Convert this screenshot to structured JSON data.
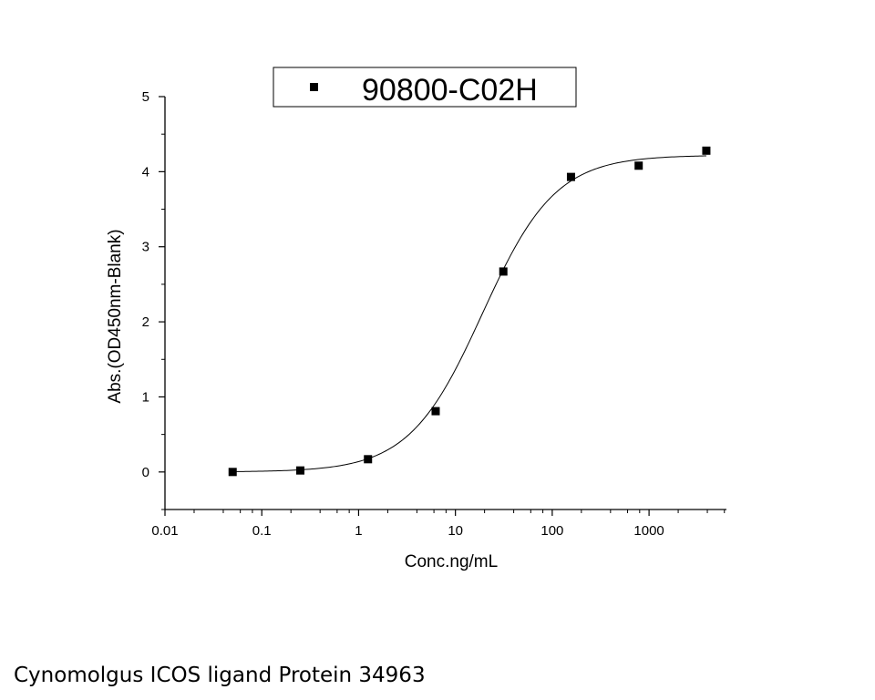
{
  "chart_data": {
    "type": "scatter",
    "title": "",
    "xlabel": "Conc.ng/mL",
    "ylabel": "Abs.(OD450nm-Blank)",
    "xscale": "log",
    "xlim": [
      0.01,
      6300
    ],
    "ylim": [
      -0.5,
      5
    ],
    "x_ticks": [
      0.01,
      0.1,
      1,
      10,
      100,
      1000
    ],
    "x_tick_labels": [
      "0.01",
      "0.1",
      "1",
      "10",
      "100",
      "1000"
    ],
    "y_ticks": [
      0,
      1,
      2,
      3,
      4,
      5
    ],
    "y_tick_labels": [
      "0",
      "1",
      "2",
      "3",
      "4",
      "5"
    ],
    "grid": false,
    "legend_position": "top-center",
    "series": [
      {
        "name": "90800-C02H",
        "marker": "square",
        "color": "#000000",
        "x": [
          0.05,
          0.25,
          1.25,
          6.25,
          31.25,
          156.25,
          781.25,
          3906.25
        ],
        "y": [
          0.0,
          0.02,
          0.17,
          0.81,
          2.67,
          3.93,
          4.08,
          4.28
        ]
      }
    ],
    "fit_curve": {
      "type": "4PL",
      "bottom": 0.0,
      "top": 4.22,
      "ec50": 19,
      "hill": 1.15,
      "color": "#000000"
    }
  },
  "caption": "Cynomolgus ICOS ligand Protein 34963"
}
